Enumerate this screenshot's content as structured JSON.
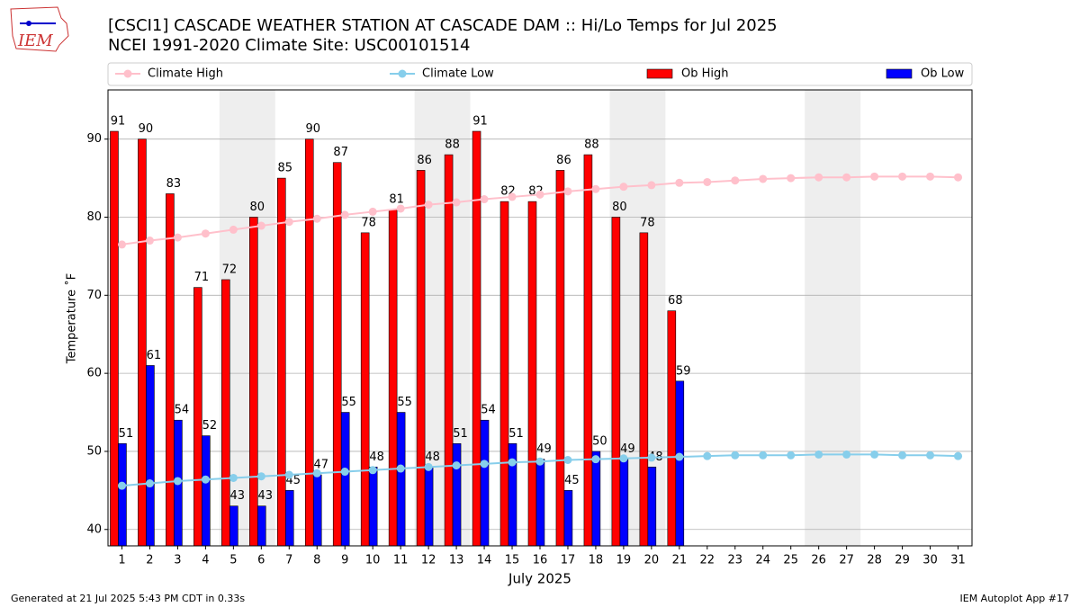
{
  "chart_data": {
    "type": "bar",
    "logo_text": "IEM",
    "title": "[CSCI1] CASCADE WEATHER STATION AT CASCADE DAM :: Hi/Lo Temps for Jul 2025",
    "subtitle": "NCEI 1991-2020 Climate Site: USC00101514",
    "x_label": "July 2025",
    "y_label": "Temperature ˚F",
    "footer_left": "Generated at 21 Jul 2025 5:43 PM CDT in 0.33s",
    "footer_right": "IEM Autoplot App #17",
    "x": [
      1,
      2,
      3,
      4,
      5,
      6,
      7,
      8,
      9,
      10,
      11,
      12,
      13,
      14,
      15,
      16,
      17,
      18,
      19,
      20,
      21,
      22,
      23,
      24,
      25,
      26,
      27,
      28,
      29,
      30,
      31
    ],
    "xlim": [
      0.5,
      31.5
    ],
    "xticks": [
      1,
      2,
      3,
      4,
      5,
      6,
      7,
      8,
      9,
      10,
      11,
      12,
      13,
      14,
      15,
      16,
      17,
      18,
      19,
      20,
      21,
      22,
      23,
      24,
      25,
      26,
      27,
      28,
      29,
      30,
      31
    ],
    "ylim": [
      37.9,
      96.3
    ],
    "yticks": [
      40,
      50,
      60,
      70,
      80,
      90
    ],
    "grid": true,
    "shaded_ranges": [
      [
        4.5,
        6.5
      ],
      [
        11.5,
        13.5
      ],
      [
        18.5,
        20.5
      ],
      [
        25.5,
        27.5
      ]
    ],
    "shade_color": "#eeeeee",
    "legend": "top",
    "series": [
      {
        "name": "Climate High",
        "kind": "line",
        "color": "#ffc0cb",
        "values": [
          76.5,
          77.0,
          77.4,
          77.9,
          78.4,
          78.9,
          79.4,
          79.8,
          80.3,
          80.7,
          81.1,
          81.6,
          81.9,
          82.3,
          82.6,
          82.9,
          83.3,
          83.6,
          83.9,
          84.1,
          84.4,
          84.5,
          84.7,
          84.9,
          85.0,
          85.1,
          85.1,
          85.2,
          85.2,
          85.2,
          85.1
        ]
      },
      {
        "name": "Climate Low",
        "kind": "line",
        "color": "#87ceeb",
        "values": [
          45.6,
          45.9,
          46.2,
          46.4,
          46.6,
          46.8,
          47.0,
          47.2,
          47.4,
          47.6,
          47.8,
          48.0,
          48.2,
          48.4,
          48.6,
          48.7,
          48.9,
          49.0,
          49.1,
          49.2,
          49.3,
          49.4,
          49.5,
          49.5,
          49.5,
          49.6,
          49.6,
          49.6,
          49.5,
          49.5,
          49.4
        ]
      },
      {
        "name": "Ob High",
        "kind": "bar",
        "color": "#ff0000",
        "values": [
          91,
          90,
          83,
          71,
          72,
          80,
          85,
          90,
          87,
          78,
          81,
          86,
          88,
          91,
          82,
          82,
          86,
          88,
          80,
          78,
          68,
          null,
          null,
          null,
          null,
          null,
          null,
          null,
          null,
          null,
          null
        ]
      },
      {
        "name": "Ob Low",
        "kind": "bar",
        "color": "#0000ff",
        "values": [
          51,
          61,
          54,
          52,
          43,
          43,
          45,
          47,
          55,
          48,
          55,
          48,
          51,
          54,
          51,
          49,
          45,
          50,
          49,
          48,
          59,
          null,
          null,
          null,
          null,
          null,
          null,
          null,
          null,
          null,
          null
        ]
      }
    ]
  }
}
